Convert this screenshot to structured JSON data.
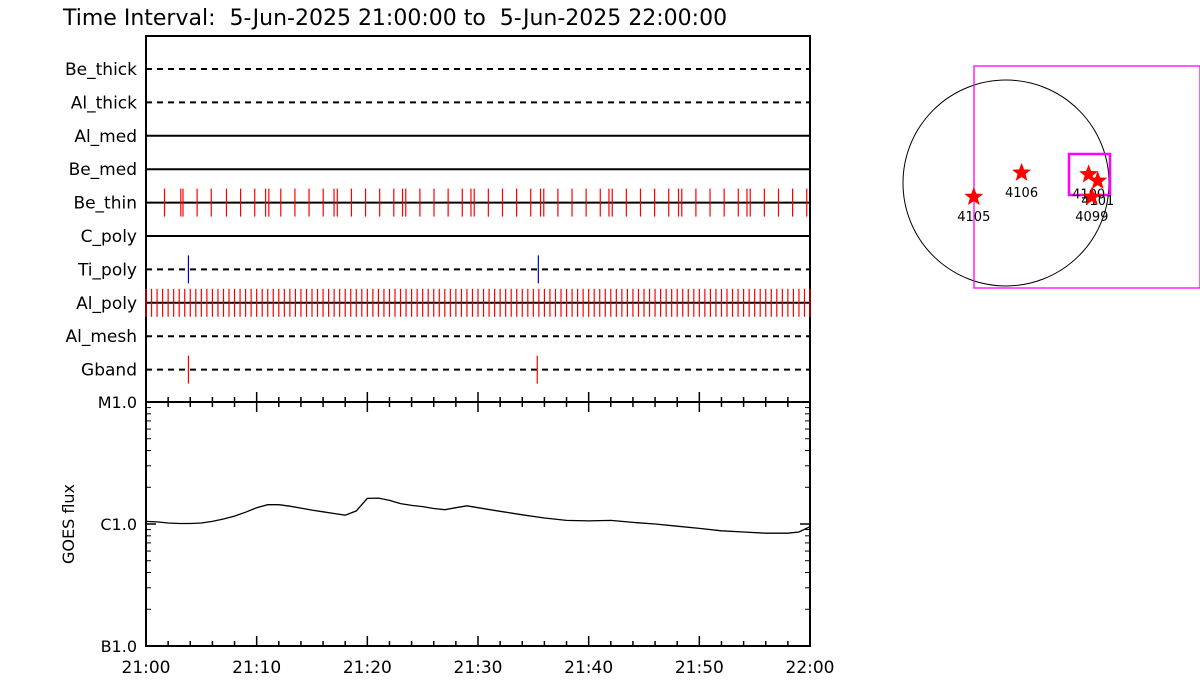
{
  "title": "Time Interval:  5-Jun-2025 21:00:00 to  5-Jun-2025 22:00:00",
  "colors": {
    "axes": "#000000",
    "exposure_marks": "#ff0000",
    "ti_poly_marks": "#0000cc",
    "goes_curve": "#000000",
    "fov": "#ff00ff",
    "solar_limb": "#000000",
    "active_regions": "#ff0000"
  },
  "chart_data": [
    {
      "type": "scatter",
      "description_kind": "filter exposure timeline",
      "xlim": [
        "21:00",
        "22:00"
      ],
      "row_order_top_to_bottom": [
        "Be_thick",
        "Al_thick",
        "Al_med",
        "Be_med",
        "Be_thin",
        "C_poly",
        "Ti_poly",
        "Al_poly",
        "Al_mesh",
        "Gband"
      ],
      "rows": [
        {
          "label": "Be_thick",
          "line": "dashed",
          "events_min": []
        },
        {
          "label": "Al_thick",
          "line": "dashed",
          "events_min": []
        },
        {
          "label": "Al_med",
          "line": "solid",
          "events_min": []
        },
        {
          "label": "Be_med",
          "line": "solid",
          "events_min": []
        },
        {
          "label": "Be_thin",
          "line": "solid",
          "mark_color": "red",
          "events_min": [
            0.6,
            2.1,
            2.3,
            3.6,
            4.9,
            6.3,
            7.6,
            8.9,
            9.9,
            10.2,
            11.3,
            12.6,
            13.9,
            15.2,
            16.2,
            16.5,
            17.8,
            19.1,
            20.4,
            21.7,
            22.5,
            22.8,
            24.1,
            25.4,
            26.7,
            28.0,
            28.8,
            29.1,
            30.4,
            31.7,
            33.0,
            34.3,
            35.2,
            35.5,
            36.8,
            38.1,
            39.4,
            40.7,
            41.5,
            41.8,
            43.1,
            44.4,
            45.7,
            47.0,
            47.9,
            48.2,
            49.5,
            50.8,
            52.1,
            53.4,
            54.2,
            54.5,
            55.8,
            57.1,
            58.4,
            59.7
          ]
        },
        {
          "label": "C_poly",
          "line": "solid",
          "events_min": []
        },
        {
          "label": "Ti_poly",
          "line": "dashed",
          "mark_color": "blue",
          "events_min": [
            2.8,
            35.0
          ]
        },
        {
          "label": "Al_poly",
          "line": "solid",
          "mark_color": "red",
          "events_interval_min": 0.5,
          "events_start_min": 0.0,
          "events_end_min": 60.0
        },
        {
          "label": "Al_mesh",
          "line": "dashed",
          "events_min": []
        },
        {
          "label": "Gband",
          "line": "dashed",
          "mark_color": "red",
          "events_min": [
            2.8,
            34.9
          ]
        }
      ]
    },
    {
      "type": "line",
      "ylabel": "GOES flux",
      "y_scale": "log",
      "ylim": [
        1e-07,
        1e-05
      ],
      "y_ticks": [
        {
          "value": 1e-05,
          "label": "M1.0"
        },
        {
          "value": 1e-06,
          "label": "C1.0"
        },
        {
          "value": 1e-07,
          "label": "B1.0"
        }
      ],
      "x_ticks": [
        "21:00",
        "21:10",
        "21:20",
        "21:30",
        "21:40",
        "21:50",
        "22:00"
      ],
      "xlim": [
        "21:00",
        "22:00"
      ],
      "series": [
        {
          "values_min": [
            0,
            1,
            2,
            3,
            4,
            5,
            6,
            7,
            8,
            9,
            10,
            11,
            12,
            13,
            14,
            15,
            16,
            17,
            18,
            19,
            20,
            21,
            22,
            23,
            24,
            25,
            26,
            27,
            28,
            29,
            30,
            32,
            34,
            36,
            38,
            40,
            42,
            44,
            46,
            48,
            50,
            52,
            54,
            56,
            58,
            59,
            60
          ],
          "values": [
            1.05e-06,
            1.04e-06,
            1.02e-06,
            1.01e-06,
            1.01e-06,
            1.02e-06,
            1.05e-06,
            1.1e-06,
            1.16e-06,
            1.25e-06,
            1.36e-06,
            1.44e-06,
            1.44e-06,
            1.4e-06,
            1.35e-06,
            1.3e-06,
            1.26e-06,
            1.22e-06,
            1.18e-06,
            1.28e-06,
            1.62e-06,
            1.63e-06,
            1.56e-06,
            1.47e-06,
            1.42e-06,
            1.39e-06,
            1.34e-06,
            1.31e-06,
            1.36e-06,
            1.41e-06,
            1.36e-06,
            1.27e-06,
            1.19e-06,
            1.12e-06,
            1.07e-06,
            1.06e-06,
            1.07e-06,
            1.03e-06,
            1e-06,
            9.6e-07,
            9.2e-07,
            8.8e-07,
            8.6e-07,
            8.4e-07,
            8.4e-07,
            8.6e-07,
            9.5e-07
          ]
        }
      ]
    },
    {
      "type": "scatter",
      "description_kind": "solar disk active-region map",
      "regions": [
        {
          "label": "4106",
          "x_arcsec": 145,
          "y_arcsec": 95
        },
        {
          "label": "4100",
          "x_arcsec": 770,
          "y_arcsec": 80
        },
        {
          "label": "4101",
          "x_arcsec": 855,
          "y_arcsec": 20
        },
        {
          "label": "4099",
          "x_arcsec": 800,
          "y_arcsec": -130
        },
        {
          "label": "4105",
          "x_arcsec": -300,
          "y_arcsec": -130
        }
      ]
    }
  ]
}
